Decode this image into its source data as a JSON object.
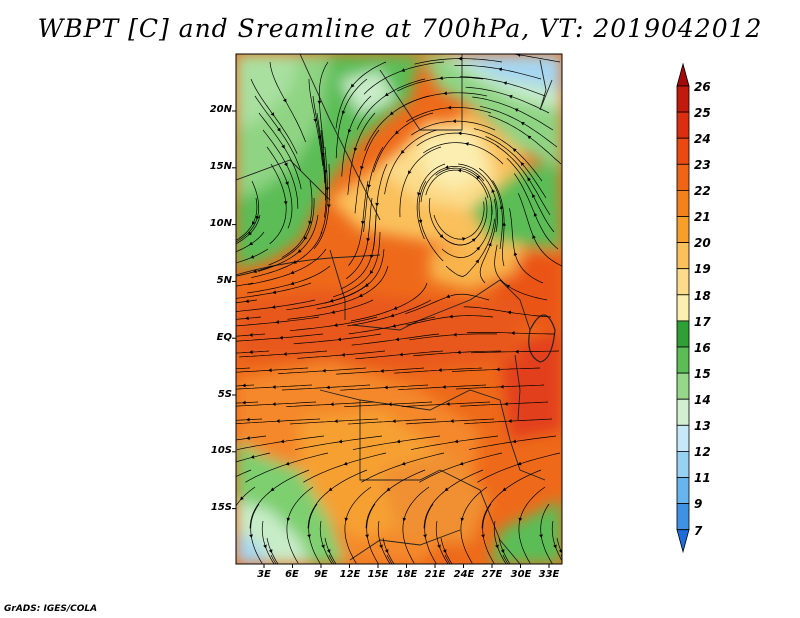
{
  "title": "WBPT [C] and Sreamline at 700hPa, VT: 2019042012",
  "map": {
    "field": "Wet-bulb potential temperature",
    "units": "C",
    "level": "700hPa",
    "valid_time": "2019042012",
    "lat_labels": [
      "20N",
      "15N",
      "10N",
      "5N",
      "EQ",
      "5S",
      "10S",
      "15S"
    ],
    "lon_labels": [
      "3E",
      "6E",
      "9E",
      "12E",
      "15E",
      "18E",
      "21E",
      "24E",
      "27E",
      "30E",
      "33E"
    ]
  },
  "colorbar": {
    "labels": [
      "26",
      "25",
      "24",
      "23",
      "22",
      "21",
      "20",
      "19",
      "18",
      "17",
      "16",
      "15",
      "14",
      "13",
      "12",
      "11",
      "9",
      "7"
    ],
    "colors": [
      "#a50a0a",
      "#c21b0d",
      "#db2e10",
      "#ea4a12",
      "#f06415",
      "#f4821c",
      "#f6a02b",
      "#fac05c",
      "#fcdc8a",
      "#fbf0b0",
      "#2ea036",
      "#5cbd57",
      "#96d88a",
      "#d2f0d0",
      "#c6e8f8",
      "#98d2f2",
      "#68b4ec",
      "#3e92e4",
      "#1e6cd8"
    ]
  },
  "credit": "GrADS: IGES/COLA"
}
